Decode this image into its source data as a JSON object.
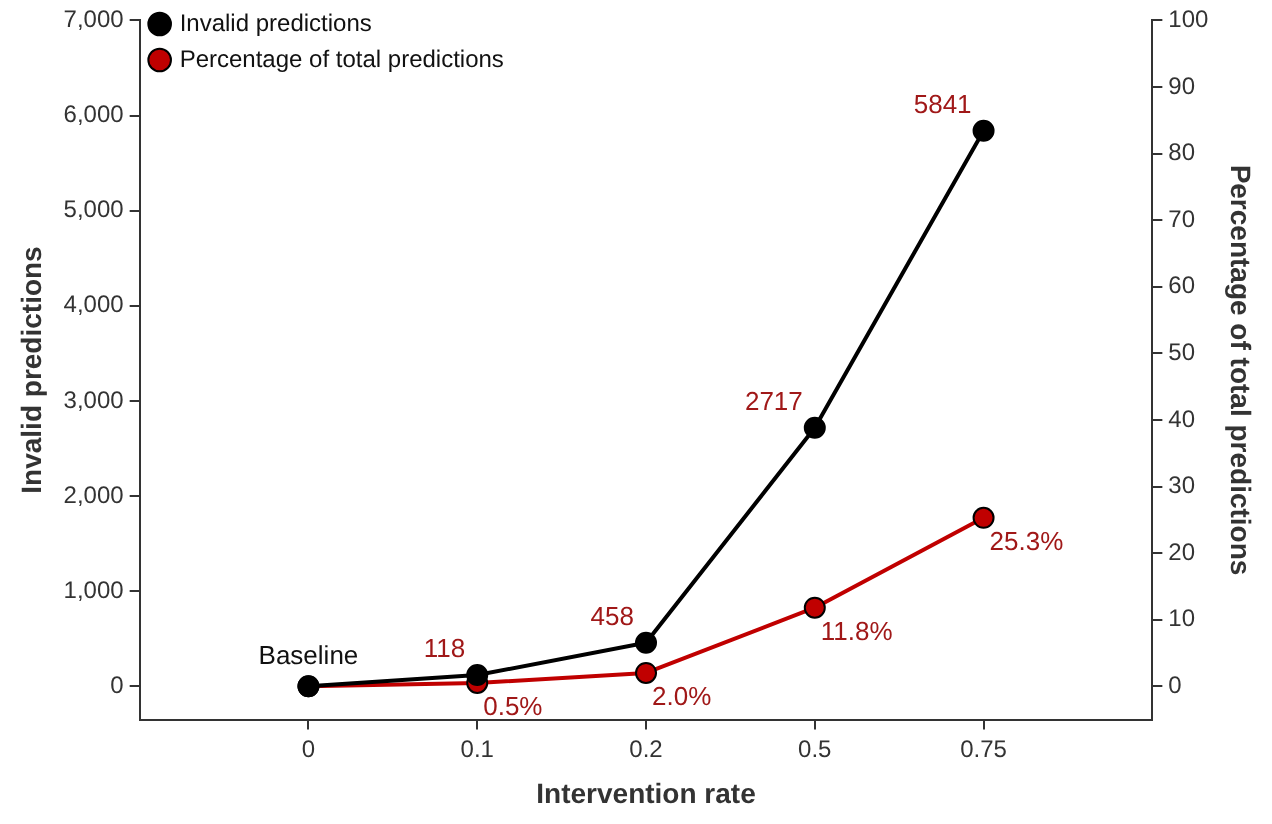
{
  "chart_data": {
    "type": "line",
    "xlabel": "Intervention rate",
    "ylabel": "Invalid predictions",
    "y2label": "Percentage of total predictions",
    "categories": [
      "0",
      "0.1",
      "0.2",
      "0.5",
      "0.75"
    ],
    "series": [
      {
        "name": "Invalid predictions",
        "color": "#000000",
        "values": [
          0,
          118,
          458,
          2717,
          5841
        ],
        "value_labels": [
          null,
          "118",
          "458",
          "2717",
          "5841"
        ]
      },
      {
        "name": "Percentage of total predictions",
        "color": "#c00000",
        "axis": "y2",
        "values": [
          0,
          0.5,
          2.0,
          11.8,
          25.3
        ],
        "value_labels": [
          null,
          "0.5%",
          "2.0%",
          "11.8%",
          "25.3%"
        ]
      }
    ],
    "ylim": [
      -350,
      7000
    ],
    "yticks": [
      {
        "value": 0,
        "label": "0"
      },
      {
        "value": 1000,
        "label": "1,000"
      },
      {
        "value": 2000,
        "label": "2,000"
      },
      {
        "value": 3000,
        "label": "3,000"
      },
      {
        "value": 4000,
        "label": "4,000"
      },
      {
        "value": 5000,
        "label": "5,000"
      },
      {
        "value": 6000,
        "label": "6,000"
      },
      {
        "value": 7000,
        "label": "7,000"
      }
    ],
    "y2lim": [
      -5,
      100
    ],
    "y2ticks": [
      0,
      10,
      20,
      30,
      40,
      50,
      60,
      70,
      80,
      90,
      100
    ],
    "annotations": [
      {
        "text": "Baseline",
        "x": "0",
        "y": 0
      }
    ],
    "legend": "top left",
    "marker": "circle",
    "line_style": "solid",
    "grid": false
  }
}
